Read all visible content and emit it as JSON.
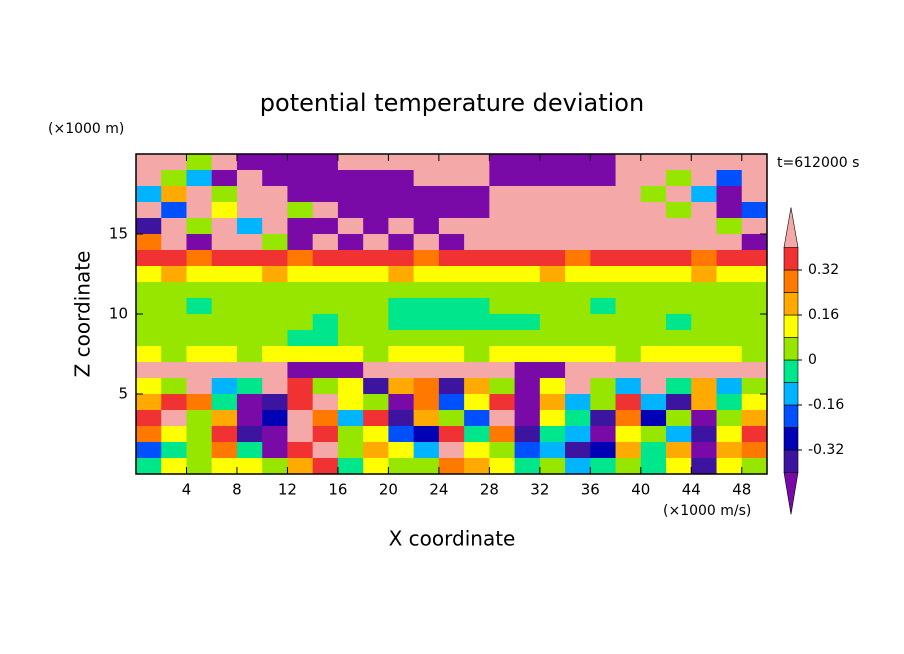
{
  "chart_data": {
    "type": "contour",
    "title": "potential temperature deviation",
    "y_unit": "(×1000 m)",
    "x_unit": "(×1000 m/s)",
    "time_label": "t=612000 s",
    "xlabel": "X coordinate",
    "ylabel": "Z coordinate",
    "xlim": [
      0,
      50
    ],
    "ylim": [
      0,
      20
    ],
    "xticks": [
      4,
      8,
      12,
      16,
      20,
      24,
      28,
      32,
      36,
      40,
      44,
      48
    ],
    "yticks": [
      5,
      10,
      15
    ],
    "levels": [
      -0.4,
      -0.32,
      -0.24,
      -0.16,
      -0.08,
      0,
      0.08,
      0.16,
      0.24,
      0.32,
      0.4
    ],
    "colors": [
      "#7a0aa8",
      "#3c14a0",
      "#0000b4",
      "#0050ff",
      "#00b4ff",
      "#00e68c",
      "#96e600",
      "#ffff00",
      "#ffaa00",
      "#ff7800",
      "#f03232",
      "#f4a8a8"
    ],
    "colorbar_ticks": [
      -0.32,
      -0.16,
      0,
      0.16,
      0.32
    ],
    "x": [
      1,
      3,
      5,
      7,
      9,
      11,
      13,
      15,
      17,
      19,
      21,
      23,
      25,
      27,
      29,
      31,
      33,
      35,
      37,
      39,
      41,
      43,
      45,
      47,
      49
    ],
    "y": [
      19.5,
      18.5,
      17.5,
      16.5,
      15.5,
      14.5,
      13.5,
      12.5,
      11.5,
      10.5,
      9.5,
      8.5,
      7.5,
      6.5,
      5.5,
      4.5,
      3.5,
      2.5,
      1.5,
      0.5
    ],
    "z": [
      [
        0.45,
        0.45,
        0.04,
        0.45,
        -0.45,
        -0.45,
        -0.45,
        -0.45,
        0.45,
        0.45,
        0.45,
        0.45,
        0.45,
        0.45,
        -0.45,
        -0.45,
        -0.45,
        -0.45,
        -0.45,
        0.45,
        0.45,
        0.45,
        0.45,
        0.45,
        0.45
      ],
      [
        0.45,
        0.04,
        -0.12,
        -0.45,
        0.45,
        -0.45,
        -0.45,
        -0.45,
        -0.45,
        -0.45,
        -0.45,
        0.45,
        0.45,
        0.45,
        -0.45,
        -0.45,
        -0.45,
        -0.45,
        -0.45,
        0.45,
        0.45,
        0.04,
        0.45,
        -0.2,
        0.45
      ],
      [
        -0.12,
        0.2,
        0.45,
        0.04,
        0.45,
        0.45,
        -0.45,
        -0.45,
        -0.45,
        -0.45,
        -0.45,
        -0.45,
        -0.45,
        -0.45,
        0.45,
        0.45,
        0.45,
        0.45,
        0.45,
        0.45,
        0.04,
        0.45,
        -0.12,
        -0.45,
        0.45
      ],
      [
        0.45,
        -0.2,
        0.45,
        0.12,
        0.45,
        0.45,
        0.04,
        0.45,
        -0.45,
        -0.45,
        -0.45,
        -0.45,
        -0.45,
        -0.45,
        0.45,
        0.45,
        0.45,
        0.45,
        0.45,
        0.45,
        0.45,
        0.04,
        0.45,
        -0.45,
        -0.2
      ],
      [
        -0.36,
        0.45,
        0.04,
        0.45,
        -0.12,
        0.45,
        -0.45,
        -0.45,
        0.45,
        -0.45,
        0.45,
        -0.45,
        0.45,
        0.45,
        0.45,
        0.45,
        0.45,
        0.45,
        0.45,
        0.45,
        0.45,
        0.45,
        0.45,
        0.04,
        0.45
      ],
      [
        0.28,
        0.45,
        -0.45,
        0.45,
        0.45,
        0.04,
        -0.45,
        0.45,
        -0.45,
        0.45,
        -0.45,
        0.45,
        -0.45,
        0.45,
        0.45,
        0.45,
        0.45,
        0.45,
        0.45,
        0.45,
        0.45,
        0.45,
        0.45,
        0.45,
        -0.45
      ],
      [
        0.36,
        0.36,
        0.28,
        0.36,
        0.36,
        0.36,
        0.28,
        0.36,
        0.36,
        0.36,
        0.36,
        0.28,
        0.36,
        0.36,
        0.36,
        0.36,
        0.36,
        0.28,
        0.36,
        0.36,
        0.36,
        0.36,
        0.28,
        0.36,
        0.36
      ],
      [
        0.12,
        0.2,
        0.12,
        0.12,
        0.12,
        0.2,
        0.12,
        0.12,
        0.12,
        0.12,
        0.2,
        0.12,
        0.12,
        0.12,
        0.12,
        0.12,
        0.2,
        0.12,
        0.12,
        0.12,
        0.12,
        0.12,
        0.2,
        0.12,
        0.12
      ],
      [
        0.04,
        0.04,
        0.04,
        0.04,
        0.04,
        0.04,
        0.04,
        0.04,
        0.04,
        0.04,
        0.04,
        0.04,
        0.04,
        0.04,
        0.04,
        0.04,
        0.04,
        0.04,
        0.04,
        0.04,
        0.04,
        0.04,
        0.04,
        0.04,
        0.04
      ],
      [
        0.04,
        0.04,
        -0.04,
        0.04,
        0.04,
        0.04,
        0.04,
        0.04,
        0.04,
        0.04,
        -0.04,
        -0.04,
        -0.04,
        -0.04,
        0.04,
        0.04,
        0.04,
        0.04,
        -0.04,
        0.04,
        0.04,
        0.04,
        0.04,
        0.04,
        0.04
      ],
      [
        0.04,
        0.04,
        0.04,
        0.04,
        0.04,
        0.04,
        0.04,
        -0.04,
        0.04,
        0.04,
        -0.04,
        -0.04,
        -0.04,
        -0.04,
        -0.04,
        -0.04,
        0.04,
        0.04,
        0.04,
        0.04,
        0.04,
        -0.04,
        0.04,
        0.04,
        0.04
      ],
      [
        0.04,
        0.04,
        0.04,
        0.04,
        0.04,
        0.04,
        -0.04,
        -0.04,
        0.04,
        0.04,
        0.04,
        0.04,
        0.04,
        0.04,
        0.04,
        0.04,
        0.04,
        0.04,
        0.04,
        0.04,
        0.04,
        0.04,
        0.04,
        0.04,
        0.04
      ],
      [
        0.12,
        0.04,
        0.12,
        0.12,
        0.04,
        0.12,
        0.12,
        0.12,
        0.12,
        0.04,
        0.12,
        0.12,
        0.12,
        0.04,
        0.12,
        0.12,
        0.12,
        0.12,
        0.12,
        0.04,
        0.12,
        0.12,
        0.12,
        0.12,
        0.04
      ],
      [
        0.45,
        0.45,
        0.45,
        0.45,
        0.45,
        0.45,
        -0.45,
        -0.45,
        -0.45,
        0.45,
        0.45,
        0.45,
        0.45,
        0.45,
        0.45,
        -0.45,
        -0.45,
        0.45,
        0.45,
        0.45,
        0.45,
        0.45,
        0.45,
        0.45,
        0.45
      ],
      [
        0.12,
        0.04,
        0.45,
        -0.12,
        -0.04,
        0.45,
        0.36,
        0.04,
        0.12,
        -0.36,
        0.2,
        0.28,
        -0.36,
        0.2,
        0.04,
        -0.45,
        0.12,
        0.45,
        0.04,
        -0.12,
        0.45,
        -0.04,
        0.2,
        -0.12,
        0.04
      ],
      [
        0.2,
        0.36,
        0.28,
        -0.04,
        -0.45,
        -0.36,
        0.36,
        0.45,
        0.12,
        0.04,
        -0.45,
        0.28,
        -0.2,
        0.12,
        0.36,
        -0.45,
        0.2,
        -0.12,
        0.04,
        0.36,
        -0.12,
        -0.36,
        0.2,
        -0.04,
        0.12
      ],
      [
        0.36,
        0.45,
        0.04,
        0.2,
        -0.45,
        -0.28,
        0.45,
        0.28,
        -0.12,
        0.36,
        -0.36,
        0.2,
        0.04,
        -0.2,
        0.45,
        -0.45,
        0.12,
        -0.04,
        -0.36,
        0.28,
        -0.28,
        0.04,
        -0.45,
        0.04,
        0.2
      ],
      [
        0.28,
        0.12,
        0.04,
        0.36,
        -0.36,
        -0.45,
        0.45,
        0.36,
        0.04,
        0.12,
        -0.2,
        -0.28,
        0.36,
        -0.04,
        0.28,
        -0.36,
        -0.04,
        -0.12,
        -0.45,
        0.12,
        0.04,
        -0.12,
        -0.36,
        0.12,
        0.36
      ],
      [
        -0.2,
        -0.04,
        0.04,
        0.28,
        -0.04,
        -0.45,
        0.36,
        0.45,
        0.04,
        0.2,
        0.12,
        -0.12,
        0.45,
        0.12,
        0.04,
        -0.2,
        -0.12,
        -0.36,
        -0.28,
        0.2,
        -0.04,
        0.2,
        -0.45,
        0.2,
        0.28
      ],
      [
        -0.04,
        0.12,
        0.04,
        0.12,
        0.12,
        0.04,
        0.2,
        0.36,
        -0.04,
        0.12,
        0.04,
        0.04,
        0.28,
        0.2,
        0.12,
        -0.04,
        0.04,
        -0.12,
        -0.04,
        0.04,
        -0.04,
        0.12,
        -0.36,
        0.12,
        0.04
      ]
    ]
  }
}
